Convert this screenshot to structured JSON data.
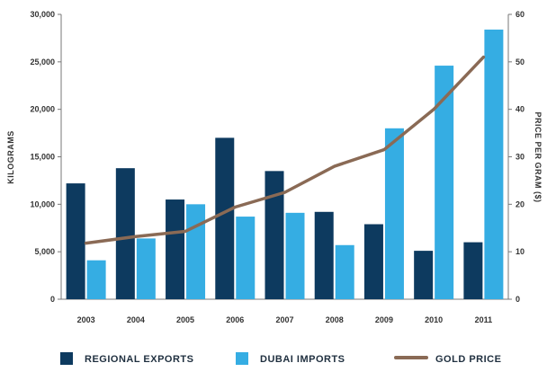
{
  "chart_data": {
    "type": "bar",
    "categories": [
      "2003",
      "2004",
      "2005",
      "2006",
      "2007",
      "2008",
      "2009",
      "2010",
      "2011"
    ],
    "series": [
      {
        "name": "REGIONAL EXPORTS",
        "kind": "bar",
        "axis": "left",
        "color": "#0d3a5f",
        "values": [
          12200,
          13800,
          10500,
          17000,
          13500,
          9200,
          7900,
          5100,
          6000
        ]
      },
      {
        "name": "DUBAI IMPORTS",
        "kind": "bar",
        "axis": "left",
        "color": "#35ade3",
        "values": [
          4100,
          6400,
          10000,
          8700,
          9100,
          5700,
          18000,
          24600,
          28400
        ]
      },
      {
        "name": "GOLD PRICE",
        "kind": "line",
        "axis": "right",
        "color": "#8a6a55",
        "values": [
          11.8,
          13.2,
          14.3,
          19.4,
          22.5,
          28.0,
          31.5,
          40.0,
          51.0
        ]
      }
    ],
    "ylabel": "KILOGRAMS",
    "ylim": [
      0,
      30000
    ],
    "yticks": [
      "0",
      "5,000",
      "10,000",
      "15,000",
      "20,000",
      "25,000",
      "30,000"
    ],
    "y2label": "PRICE PER GRAM ($)",
    "y2lim": [
      0,
      60
    ],
    "y2ticks": [
      "0",
      "10",
      "20",
      "30",
      "40",
      "50",
      "60"
    ],
    "legend_position": "bottom",
    "grid": false
  }
}
